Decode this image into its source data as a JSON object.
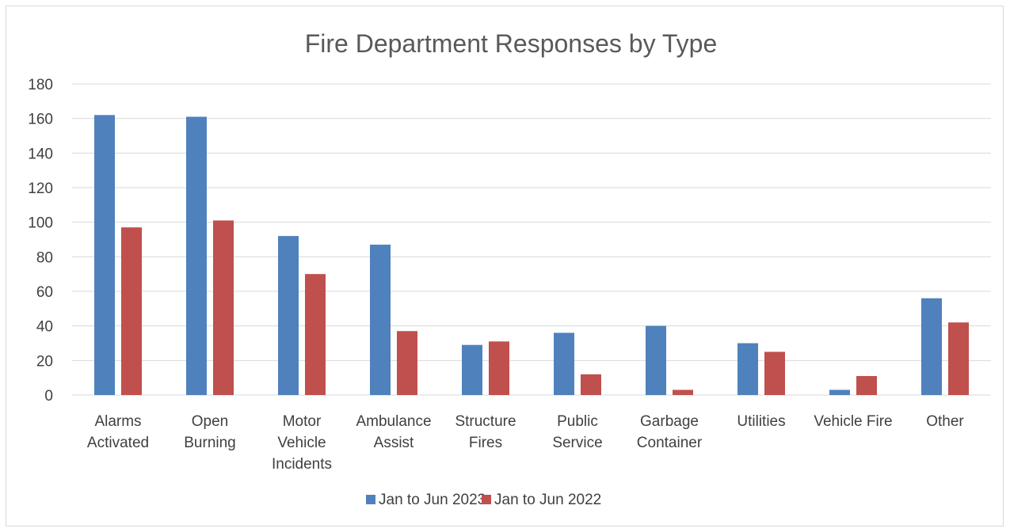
{
  "chart_data": {
    "type": "bar",
    "title": "Fire Department Responses by Type",
    "xlabel": "",
    "ylabel": "",
    "categories": [
      [
        "Alarms",
        "Activated"
      ],
      [
        "Open",
        "Burning"
      ],
      [
        "Motor",
        "Vehicle",
        "Incidents"
      ],
      [
        "Ambulance",
        "Assist"
      ],
      [
        "Structure",
        "Fires"
      ],
      [
        "Public",
        "Service"
      ],
      [
        "Garbage",
        "Container"
      ],
      [
        "Utilities"
      ],
      [
        "Vehicle Fire"
      ],
      [
        "Other"
      ]
    ],
    "series": [
      {
        "name": "Jan to Jun 2023",
        "color": "#4f81bd",
        "values": [
          162,
          161,
          92,
          87,
          29,
          36,
          40,
          30,
          3,
          56
        ]
      },
      {
        "name": "Jan to Jun 2022",
        "color": "#c0504d",
        "values": [
          97,
          101,
          70,
          37,
          31,
          12,
          3,
          25,
          11,
          42
        ]
      }
    ],
    "ylim": [
      0,
      180
    ],
    "yticks": [
      0,
      20,
      40,
      60,
      80,
      100,
      120,
      140,
      160,
      180
    ],
    "grid": true,
    "legend_position": "bottom"
  }
}
